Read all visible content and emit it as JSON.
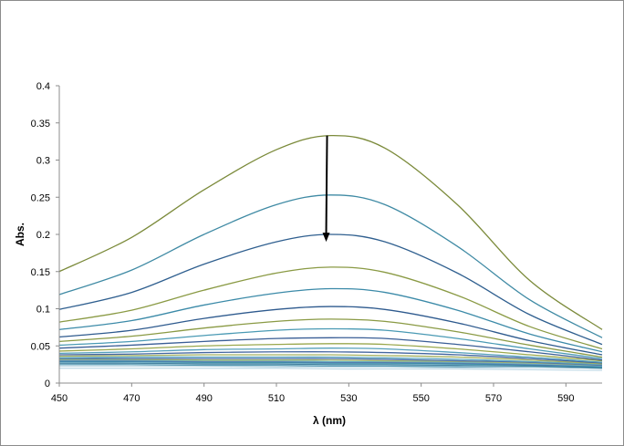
{
  "chart_data": {
    "type": "line",
    "title": "",
    "xlabel": "λ (nm)",
    "ylabel": "Abs.",
    "xlim": [
      450,
      600
    ],
    "ylim": [
      0,
      0.4
    ],
    "x_ticks": [
      450,
      470,
      490,
      510,
      530,
      550,
      570,
      590
    ],
    "y_ticks": [
      0,
      0.05,
      0.1,
      0.15,
      0.2,
      0.25,
      0.3,
      0.35,
      0.4
    ],
    "y_tick_labels": [
      "0",
      "0.05",
      "0.1",
      "0.15",
      "0.2",
      "0.25",
      "0.3",
      "0.35",
      "0.4"
    ],
    "grid": false,
    "legend": "none",
    "peak_wavelength": 525,
    "annotation": "downward arrow at the peak from 0.333 to 0.19",
    "arrow": {
      "x": 524,
      "y_from": 0.333,
      "y_to": 0.19
    },
    "series": [
      {
        "color": "#7b8a3a",
        "points": [
          [
            450,
            0.15
          ],
          [
            470,
            0.196
          ],
          [
            490,
            0.26
          ],
          [
            510,
            0.314
          ],
          [
            525,
            0.333
          ],
          [
            540,
            0.316
          ],
          [
            560,
            0.24
          ],
          [
            580,
            0.138
          ],
          [
            600,
            0.072
          ]
        ]
      },
      {
        "color": "#3f8aa4",
        "points": [
          [
            450,
            0.119
          ],
          [
            470,
            0.152
          ],
          [
            490,
            0.2
          ],
          [
            510,
            0.24
          ],
          [
            525,
            0.253
          ],
          [
            540,
            0.24
          ],
          [
            560,
            0.184
          ],
          [
            580,
            0.112
          ],
          [
            600,
            0.061
          ]
        ]
      },
      {
        "color": "#2f5f8f",
        "points": [
          [
            450,
            0.099
          ],
          [
            470,
            0.122
          ],
          [
            490,
            0.16
          ],
          [
            510,
            0.19
          ],
          [
            525,
            0.2
          ],
          [
            540,
            0.19
          ],
          [
            560,
            0.148
          ],
          [
            580,
            0.092
          ],
          [
            600,
            0.052
          ]
        ]
      },
      {
        "color": "#8a9a44",
        "points": [
          [
            450,
            0.082
          ],
          [
            470,
            0.098
          ],
          [
            490,
            0.125
          ],
          [
            510,
            0.148
          ],
          [
            525,
            0.156
          ],
          [
            540,
            0.149
          ],
          [
            560,
            0.118
          ],
          [
            580,
            0.076
          ],
          [
            600,
            0.046
          ]
        ]
      },
      {
        "color": "#3b8aa8",
        "points": [
          [
            450,
            0.072
          ],
          [
            470,
            0.084
          ],
          [
            490,
            0.105
          ],
          [
            510,
            0.121
          ],
          [
            525,
            0.127
          ],
          [
            540,
            0.122
          ],
          [
            560,
            0.098
          ],
          [
            580,
            0.066
          ],
          [
            600,
            0.042
          ]
        ]
      },
      {
        "color": "#2e5a8e",
        "points": [
          [
            450,
            0.062
          ],
          [
            470,
            0.071
          ],
          [
            490,
            0.087
          ],
          [
            510,
            0.099
          ],
          [
            525,
            0.103
          ],
          [
            540,
            0.099
          ],
          [
            560,
            0.081
          ],
          [
            580,
            0.057
          ],
          [
            600,
            0.038
          ]
        ]
      },
      {
        "color": "#8a9a44",
        "points": [
          [
            450,
            0.056
          ],
          [
            470,
            0.063
          ],
          [
            490,
            0.074
          ],
          [
            510,
            0.083
          ],
          [
            525,
            0.086
          ],
          [
            540,
            0.083
          ],
          [
            560,
            0.069
          ],
          [
            580,
            0.051
          ],
          [
            600,
            0.035
          ]
        ]
      },
      {
        "color": "#4a9ab4",
        "points": [
          [
            450,
            0.051
          ],
          [
            470,
            0.056
          ],
          [
            490,
            0.064
          ],
          [
            510,
            0.071
          ],
          [
            525,
            0.073
          ],
          [
            540,
            0.071
          ],
          [
            560,
            0.06
          ],
          [
            580,
            0.046
          ],
          [
            600,
            0.033
          ]
        ]
      },
      {
        "color": "#3a5e96",
        "points": [
          [
            450,
            0.047
          ],
          [
            470,
            0.051
          ],
          [
            490,
            0.056
          ],
          [
            510,
            0.06
          ],
          [
            525,
            0.061
          ],
          [
            540,
            0.06
          ],
          [
            560,
            0.052
          ],
          [
            580,
            0.042
          ],
          [
            600,
            0.031
          ]
        ]
      },
      {
        "color": "#9aa84e",
        "points": [
          [
            450,
            0.043
          ],
          [
            470,
            0.046
          ],
          [
            490,
            0.05
          ],
          [
            510,
            0.052
          ],
          [
            525,
            0.053
          ],
          [
            540,
            0.052
          ],
          [
            560,
            0.046
          ],
          [
            580,
            0.038
          ],
          [
            600,
            0.03
          ]
        ]
      },
      {
        "color": "#55a0bb",
        "points": [
          [
            450,
            0.04
          ],
          [
            470,
            0.042
          ],
          [
            490,
            0.045
          ],
          [
            510,
            0.046
          ],
          [
            525,
            0.047
          ],
          [
            540,
            0.046
          ],
          [
            560,
            0.041
          ],
          [
            580,
            0.035
          ],
          [
            600,
            0.028
          ]
        ]
      },
      {
        "color": "#4466a0",
        "points": [
          [
            450,
            0.038
          ],
          [
            470,
            0.039
          ],
          [
            490,
            0.041
          ],
          [
            510,
            0.042
          ],
          [
            525,
            0.042
          ],
          [
            540,
            0.041
          ],
          [
            560,
            0.038
          ],
          [
            580,
            0.033
          ],
          [
            600,
            0.027
          ]
        ]
      },
      {
        "color": "#a4b060",
        "points": [
          [
            450,
            0.036
          ],
          [
            470,
            0.037
          ],
          [
            490,
            0.038
          ],
          [
            510,
            0.038
          ],
          [
            525,
            0.038
          ],
          [
            540,
            0.037
          ],
          [
            560,
            0.035
          ],
          [
            580,
            0.031
          ],
          [
            600,
            0.026
          ]
        ]
      },
      {
        "color": "#5fa8c0",
        "points": [
          [
            450,
            0.034
          ],
          [
            470,
            0.035
          ],
          [
            490,
            0.035
          ],
          [
            510,
            0.035
          ],
          [
            525,
            0.035
          ],
          [
            540,
            0.034
          ],
          [
            560,
            0.032
          ],
          [
            580,
            0.029
          ],
          [
            600,
            0.025
          ]
        ]
      },
      {
        "color": "#4e70a8",
        "points": [
          [
            450,
            0.033
          ],
          [
            470,
            0.033
          ],
          [
            490,
            0.033
          ],
          [
            510,
            0.033
          ],
          [
            525,
            0.033
          ],
          [
            540,
            0.032
          ],
          [
            560,
            0.03
          ],
          [
            580,
            0.028
          ],
          [
            600,
            0.024
          ]
        ]
      },
      {
        "color": "#aab86c",
        "points": [
          [
            450,
            0.032
          ],
          [
            470,
            0.032
          ],
          [
            490,
            0.031
          ],
          [
            510,
            0.031
          ],
          [
            525,
            0.031
          ],
          [
            540,
            0.03
          ],
          [
            560,
            0.029
          ],
          [
            580,
            0.027
          ],
          [
            600,
            0.024
          ]
        ]
      },
      {
        "color": "#6ab0c6",
        "points": [
          [
            450,
            0.031
          ],
          [
            470,
            0.031
          ],
          [
            490,
            0.03
          ],
          [
            510,
            0.03
          ],
          [
            525,
            0.029
          ],
          [
            540,
            0.029
          ],
          [
            560,
            0.028
          ],
          [
            580,
            0.026
          ],
          [
            600,
            0.023
          ]
        ]
      },
      {
        "color": "#587ab0",
        "points": [
          [
            450,
            0.03
          ],
          [
            470,
            0.03
          ],
          [
            490,
            0.029
          ],
          [
            510,
            0.029
          ],
          [
            525,
            0.028
          ],
          [
            540,
            0.028
          ],
          [
            560,
            0.027
          ],
          [
            580,
            0.025
          ],
          [
            600,
            0.023
          ]
        ]
      },
      {
        "color": "#3a8ba6",
        "points": [
          [
            450,
            0.029
          ],
          [
            470,
            0.029
          ],
          [
            490,
            0.028
          ],
          [
            510,
            0.028
          ],
          [
            525,
            0.027
          ],
          [
            540,
            0.027
          ],
          [
            560,
            0.026
          ],
          [
            580,
            0.024
          ],
          [
            600,
            0.022
          ]
        ]
      },
      {
        "color": "#7fb8cc",
        "points": [
          [
            450,
            0.028
          ],
          [
            470,
            0.028
          ],
          [
            490,
            0.027
          ],
          [
            510,
            0.027
          ],
          [
            525,
            0.026
          ],
          [
            540,
            0.026
          ],
          [
            560,
            0.025
          ],
          [
            580,
            0.024
          ],
          [
            600,
            0.022
          ]
        ]
      },
      {
        "color": "#2f6f8f",
        "points": [
          [
            450,
            0.027
          ],
          [
            470,
            0.027
          ],
          [
            490,
            0.026
          ],
          [
            510,
            0.026
          ],
          [
            525,
            0.025
          ],
          [
            540,
            0.025
          ],
          [
            560,
            0.024
          ],
          [
            580,
            0.023
          ],
          [
            600,
            0.021
          ]
        ]
      },
      {
        "color": "#9cc8d8",
        "points": [
          [
            450,
            0.026
          ],
          [
            470,
            0.026
          ],
          [
            490,
            0.025
          ],
          [
            510,
            0.025
          ],
          [
            525,
            0.024
          ],
          [
            540,
            0.024
          ],
          [
            560,
            0.023
          ],
          [
            580,
            0.022
          ],
          [
            600,
            0.021
          ]
        ]
      },
      {
        "color": "#4a90aa",
        "points": [
          [
            450,
            0.025
          ],
          [
            470,
            0.025
          ],
          [
            490,
            0.024
          ],
          [
            510,
            0.024
          ],
          [
            525,
            0.023
          ],
          [
            540,
            0.023
          ],
          [
            560,
            0.022
          ],
          [
            580,
            0.022
          ],
          [
            600,
            0.02
          ]
        ]
      },
      {
        "color": "#b4d2e0",
        "points": [
          [
            450,
            0.023
          ],
          [
            470,
            0.023
          ],
          [
            490,
            0.023
          ],
          [
            510,
            0.022
          ],
          [
            525,
            0.022
          ],
          [
            540,
            0.022
          ],
          [
            560,
            0.021
          ],
          [
            580,
            0.021
          ],
          [
            600,
            0.02
          ]
        ]
      },
      {
        "color": "#c4dce8",
        "points": [
          [
            450,
            0.02
          ],
          [
            470,
            0.02
          ],
          [
            490,
            0.02
          ],
          [
            510,
            0.02
          ],
          [
            525,
            0.019
          ],
          [
            540,
            0.019
          ],
          [
            560,
            0.019
          ],
          [
            580,
            0.018
          ],
          [
            600,
            0.017
          ]
        ]
      }
    ]
  }
}
